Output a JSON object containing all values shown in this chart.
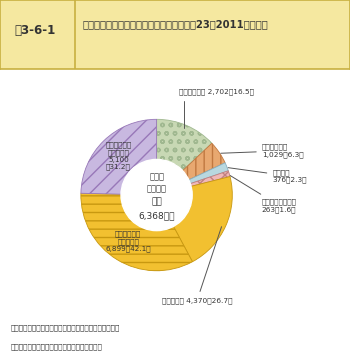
{
  "title_label": "図3-6-1",
  "title_text_line1": "農業生産関連事業の年間総販売金額（平成23（2011）年度）",
  "center_line1": "年間総",
  "center_line2": "販売金額",
  "center_line3": "１兆",
  "center_line4": "6,368億円",
  "slices": [
    {
      "pct": 16.5,
      "color": "#c8d8b4",
      "hatch": "oo",
      "ec": "#a0b890",
      "label_inside": null,
      "label_outside": "農産物の加工 2,702（16.5）",
      "label_side": "top"
    },
    {
      "pct": 6.3,
      "color": "#e8a870",
      "hatch": "||",
      "ec": "#c07840",
      "label_inside": null,
      "label_outside": "農産物直売所\n1,029（6.3）",
      "label_side": "right"
    },
    {
      "pct": 2.3,
      "color": "#b8d8e0",
      "hatch": "",
      "ec": "#88b0c0",
      "label_inside": null,
      "label_outside": "観光農園\n376（2.3）",
      "label_side": "right"
    },
    {
      "pct": 1.6,
      "color": "#f0b8b8",
      "hatch": "xx",
      "ec": "#c08080",
      "label_inside": null,
      "label_outside": "農家レストラン等\n263（1.6）",
      "label_side": "right"
    },
    {
      "pct": 26.7,
      "color": "#f2c030",
      "hatch": "",
      "ec": "#c89810",
      "label_inside": null,
      "label_outside": "農業経営体 4,370（26.7）",
      "label_side": "bottom"
    },
    {
      "pct": 42.1,
      "color": "#f2c030",
      "hatch": "--",
      "ec": "#c89810",
      "label_inside": "農産物直売所\n（農協等）\n6,899（42.1）",
      "label_outside": null,
      "label_side": null
    },
    {
      "pct": 31.2,
      "color": "#c8b8e0",
      "hatch": "//",
      "ec": "#9878b8",
      "label_inside": "農産物の加工\n（農協等）\n5,100\n（31.2）",
      "label_outside": null,
      "label_side": null
    }
  ],
  "footer1": "資料：農林水産省「農業・農村の６次産業化総合調査」",
  "footer2": "注：（　）内は年間総販売金額に占める割合。",
  "bg_color": "#ffffff",
  "title_bg": "#f5e8a0",
  "title_border": "#c8b040"
}
